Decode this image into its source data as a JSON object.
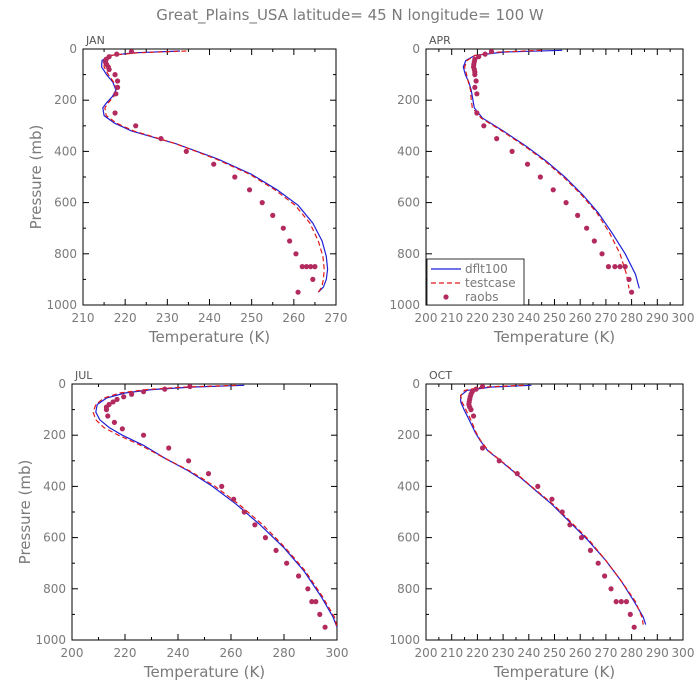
{
  "title": "Great_Plains_USA   latitude=  45 N longitude=  100 W",
  "colors": {
    "dflt100": "#1f1fd6",
    "testcase": "#e01818",
    "raobs": "#b22a5e",
    "axis_text": "#7a7a7a"
  },
  "legend": {
    "placement": "inside APR panel, lower-left",
    "entries": [
      "dflt100",
      "testcase",
      "raobs"
    ]
  },
  "chart_data": [
    {
      "type": "line",
      "panel": "JAN",
      "xlabel": "Temperature (K)",
      "ylabel": "Pressure (mb)",
      "xlim": [
        210,
        270
      ],
      "ylim": [
        1000,
        0
      ],
      "xticks": [
        210,
        220,
        230,
        240,
        250,
        260,
        270
      ],
      "yticks": [
        0,
        200,
        400,
        600,
        800,
        1000
      ],
      "series": [
        {
          "name": "dflt100",
          "style": "solid",
          "x": [
            233,
            222,
            216.5,
            214.5,
            214.4,
            215.6,
            217.1,
            217.8,
            217,
            215.6,
            214.7,
            215,
            217.5,
            221.5,
            232,
            242,
            250,
            256,
            261,
            264.5,
            266.7,
            267.7,
            268,
            267.7,
            267,
            265.8
          ],
          "y": [
            8,
            15,
            25,
            45,
            70,
            100,
            130,
            160,
            185,
            210,
            230,
            260,
            290,
            320,
            370,
            430,
            490,
            550,
            610,
            680,
            750,
            810,
            860,
            900,
            930,
            950
          ]
        },
        {
          "name": "testcase",
          "style": "dashed",
          "x": [
            234.5,
            223,
            216.5,
            215,
            215,
            216,
            217.3,
            218,
            217.3,
            216,
            215.2,
            215.5,
            218,
            222,
            232,
            241.6,
            249.6,
            255.5,
            260.3,
            263.8,
            265.8,
            266.9,
            267.2,
            267,
            266.6,
            265.8
          ],
          "y": [
            8,
            15,
            25,
            45,
            70,
            100,
            130,
            160,
            185,
            210,
            230,
            260,
            290,
            320,
            370,
            430,
            490,
            550,
            610,
            680,
            750,
            810,
            860,
            900,
            930,
            950
          ]
        },
        {
          "name": "raobs",
          "style": "markers",
          "x": [
            221.5,
            218,
            216.2,
            215.5,
            215.3,
            215.6,
            216,
            216.2,
            217.6,
            218.2,
            218.2,
            217.8,
            217.6,
            222.5,
            228.5,
            234.5,
            241,
            246,
            249.5,
            252.5,
            255,
            257.5,
            259,
            260.5,
            262,
            263,
            264,
            265,
            264.5,
            261
          ],
          "y": [
            10,
            20,
            30,
            40,
            50,
            60,
            70,
            80,
            100,
            125,
            150,
            175,
            250,
            300,
            350,
            400,
            450,
            500,
            550,
            600,
            650,
            700,
            750,
            800,
            850,
            850,
            850,
            850,
            900,
            950
          ]
        }
      ]
    },
    {
      "type": "line",
      "panel": "APR",
      "xlabel": "Temperature (K)",
      "ylabel": "",
      "xlim": [
        200,
        300
      ],
      "ylim": [
        1000,
        0
      ],
      "xticks": [
        200,
        210,
        220,
        230,
        240,
        250,
        260,
        270,
        280,
        290,
        300
      ],
      "yticks": [
        0,
        200,
        400,
        600,
        800,
        1000
      ],
      "series": [
        {
          "name": "dflt100",
          "style": "solid",
          "x": [
            253,
            230,
            219,
            215.5,
            214.5,
            215.3,
            216.7,
            217.6,
            218.1,
            218.8,
            222,
            230,
            239,
            247,
            254,
            261,
            267,
            272.5,
            277.5,
            281.5,
            283
          ],
          "y": [
            5,
            12,
            25,
            45,
            70,
            100,
            130,
            160,
            190,
            230,
            270,
            320,
            380,
            440,
            500,
            570,
            640,
            720,
            800,
            880,
            935
          ]
        },
        {
          "name": "testcase",
          "style": "dashed",
          "x": [
            245,
            228,
            219,
            216,
            215,
            215.8,
            216.5,
            217.3,
            217.5,
            218,
            221.5,
            229.5,
            238.5,
            246.5,
            253.5,
            260.5,
            266.5,
            271.5,
            275.5,
            278,
            279
          ],
          "y": [
            5,
            12,
            25,
            45,
            70,
            100,
            130,
            160,
            190,
            230,
            270,
            320,
            380,
            440,
            500,
            570,
            640,
            720,
            800,
            880,
            935
          ]
        },
        {
          "name": "raobs",
          "style": "markers",
          "x": [
            225.5,
            223,
            220.5,
            219,
            218.8,
            218.6,
            218.5,
            218.8,
            219,
            219,
            219.5,
            219,
            219.8,
            219.8,
            222.5,
            227.5,
            233.5,
            239.5,
            244.5,
            249.5,
            254.5,
            259,
            262.5,
            265.5,
            268.5,
            271,
            273.5,
            275.5,
            277.5,
            279,
            280
          ],
          "y": [
            10,
            20,
            30,
            40,
            50,
            60,
            70,
            80,
            90,
            100,
            125,
            150,
            175,
            250,
            300,
            350,
            400,
            450,
            500,
            550,
            600,
            650,
            700,
            750,
            800,
            850,
            850,
            850,
            850,
            900,
            950
          ]
        }
      ]
    },
    {
      "type": "line",
      "panel": "JUL",
      "xlabel": "Temperature (K)",
      "ylabel": "Pressure (mb)",
      "xlim": [
        200,
        300
      ],
      "ylim": [
        1000,
        0
      ],
      "xticks": [
        200,
        220,
        240,
        260,
        280,
        300
      ],
      "yticks": [
        0,
        200,
        400,
        600,
        800,
        1000
      ],
      "series": [
        {
          "name": "dflt100",
          "style": "solid",
          "x": [
            265,
            245,
            230,
            220,
            213,
            209.5,
            209,
            210.5,
            214,
            219,
            227,
            235,
            244,
            253,
            262,
            271,
            280,
            287.5,
            294,
            298.5,
            300
          ],
          "y": [
            5,
            12,
            22,
            35,
            55,
            80,
            110,
            140,
            170,
            200,
            240,
            290,
            340,
            400,
            470,
            550,
            640,
            730,
            830,
            910,
            950
          ]
        },
        {
          "name": "testcase",
          "style": "dashed",
          "x": [
            262,
            242,
            228,
            218,
            212,
            209,
            208,
            209,
            212,
            217.5,
            226,
            235,
            244.5,
            254,
            263,
            272,
            280.5,
            288,
            294.5,
            299,
            300
          ],
          "y": [
            5,
            12,
            22,
            35,
            55,
            80,
            110,
            140,
            170,
            200,
            240,
            290,
            340,
            400,
            470,
            550,
            640,
            730,
            830,
            910,
            950
          ]
        },
        {
          "name": "raobs",
          "style": "markers",
          "x": [
            244.5,
            235,
            227,
            222.5,
            219.5,
            217,
            215.5,
            214,
            213,
            213,
            213.5,
            216,
            219,
            227,
            236.5,
            244,
            251.5,
            256.5,
            261,
            265,
            269,
            273,
            277,
            281,
            285.5,
            289,
            290.5,
            292,
            293.5,
            295.5
          ],
          "y": [
            10,
            20,
            30,
            40,
            50,
            60,
            70,
            80,
            90,
            100,
            125,
            150,
            175,
            200,
            250,
            300,
            350,
            400,
            450,
            500,
            550,
            600,
            650,
            700,
            750,
            800,
            850,
            850,
            900,
            950
          ]
        }
      ]
    },
    {
      "type": "line",
      "panel": "OCT",
      "xlabel": "Temperature (K)",
      "ylabel": "",
      "xlim": [
        200,
        300
      ],
      "ylim": [
        1000,
        0
      ],
      "xticks": [
        200,
        210,
        220,
        230,
        240,
        250,
        260,
        270,
        280,
        290,
        300
      ],
      "yticks": [
        0,
        200,
        400,
        600,
        800,
        1000
      ],
      "series": [
        {
          "name": "dflt100",
          "style": "solid",
          "x": [
            241,
            225,
            216,
            213.5,
            213.5,
            214.8,
            216.3,
            217.8,
            219.2,
            221,
            224,
            229,
            235,
            242,
            249,
            256,
            263,
            270,
            276,
            281,
            284.5,
            285.5
          ],
          "y": [
            5,
            12,
            25,
            45,
            70,
            100,
            130,
            160,
            190,
            220,
            260,
            300,
            350,
            410,
            470,
            540,
            610,
            690,
            770,
            850,
            910,
            940
          ]
        },
        {
          "name": "testcase",
          "style": "dashed",
          "x": [
            238,
            222,
            215,
            213.5,
            214,
            215.5,
            217,
            218.3,
            219.5,
            221.2,
            224.2,
            229.2,
            235.2,
            242.2,
            249.5,
            256.5,
            263.5,
            270,
            276,
            281.5,
            284,
            284.5
          ],
          "y": [
            5,
            12,
            25,
            45,
            70,
            100,
            130,
            160,
            190,
            220,
            260,
            300,
            350,
            410,
            470,
            540,
            610,
            690,
            770,
            850,
            910,
            940
          ]
        },
        {
          "name": "raobs",
          "style": "markers",
          "x": [
            222,
            219.5,
            218,
            217.5,
            217.2,
            217,
            216.8,
            216.7,
            217,
            217.5,
            218.5,
            222,
            228.5,
            235.5,
            243.5,
            249,
            253,
            256,
            260.5,
            264,
            267,
            269.5,
            272,
            274,
            276,
            278,
            279.5,
            281
          ],
          "y": [
            10,
            20,
            30,
            40,
            50,
            60,
            70,
            80,
            90,
            100,
            125,
            250,
            300,
            350,
            400,
            450,
            500,
            550,
            600,
            650,
            700,
            750,
            800,
            850,
            850,
            850,
            900,
            950
          ]
        }
      ]
    }
  ]
}
